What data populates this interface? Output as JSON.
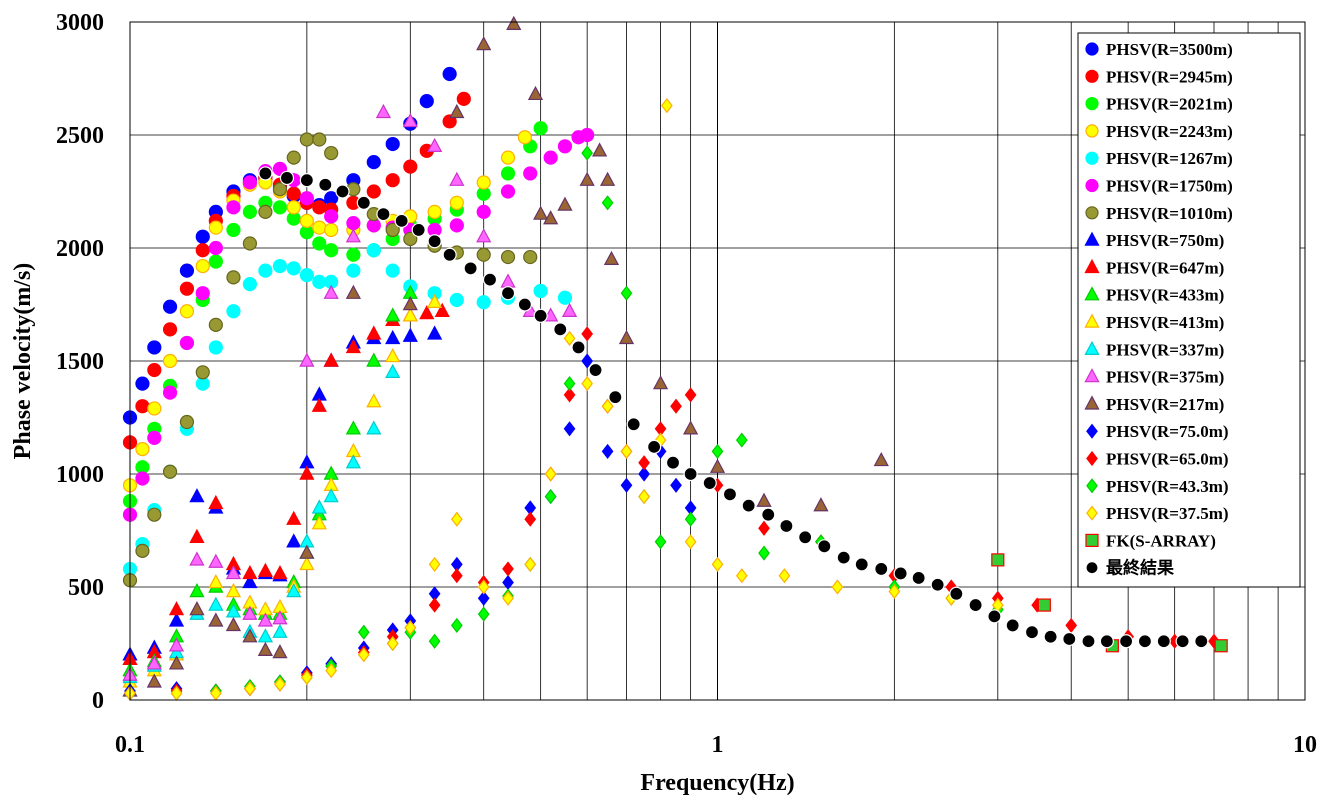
{
  "chart_data": {
    "type": "scatter",
    "title": "",
    "xlabel": "Frequency(Hz)",
    "ylabel": "Phase velocity(m/s)",
    "x_scale": "log",
    "xlim": [
      0.1,
      10
    ],
    "ylim": [
      0,
      3000
    ],
    "x_ticks": [
      0.1,
      1,
      10
    ],
    "x_tick_labels": [
      "0.1",
      "1",
      "10"
    ],
    "y_ticks": [
      0,
      500,
      1000,
      1500,
      2000,
      2500,
      3000
    ],
    "y_tick_labels": [
      "0",
      "500",
      "1000",
      "1500",
      "2000",
      "2500",
      "3000"
    ],
    "grid": true,
    "legend_position": "top-right",
    "series": [
      {
        "name": "PHSV(R=3500m)",
        "marker": "circle",
        "color": "#0000FF",
        "stroke": "#0000FF",
        "x": [
          0.1,
          0.105,
          0.11,
          0.117,
          0.125,
          0.133,
          0.14,
          0.15,
          0.16,
          0.17,
          0.18,
          0.19,
          0.2,
          0.21,
          0.22,
          0.24,
          0.26,
          0.28,
          0.3,
          0.32,
          0.35
        ],
        "y": [
          1250,
          1400,
          1560,
          1740,
          1900,
          2050,
          2160,
          2250,
          2300,
          2310,
          2270,
          2230,
          2200,
          2190,
          2220,
          2300,
          2380,
          2460,
          2550,
          2650,
          2770
        ]
      },
      {
        "name": "PHSV(R=2945m)",
        "marker": "circle",
        "color": "#FF0000",
        "stroke": "#FF0000",
        "x": [
          0.1,
          0.105,
          0.11,
          0.117,
          0.125,
          0.133,
          0.14,
          0.15,
          0.16,
          0.17,
          0.18,
          0.19,
          0.2,
          0.21,
          0.22,
          0.24,
          0.26,
          0.28,
          0.3,
          0.32,
          0.35,
          0.37
        ],
        "y": [
          1140,
          1300,
          1460,
          1640,
          1820,
          1990,
          2120,
          2230,
          2290,
          2310,
          2280,
          2240,
          2200,
          2180,
          2170,
          2200,
          2250,
          2300,
          2360,
          2430,
          2560,
          2660
        ]
      },
      {
        "name": "PHSV(R=2021m)",
        "marker": "circle",
        "color": "#00FF00",
        "stroke": "#00FF00",
        "x": [
          0.1,
          0.105,
          0.11,
          0.117,
          0.125,
          0.133,
          0.14,
          0.15,
          0.16,
          0.17,
          0.18,
          0.19,
          0.2,
          0.21,
          0.22,
          0.24,
          0.26,
          0.28,
          0.3,
          0.33,
          0.36,
          0.4,
          0.44,
          0.48,
          0.5
        ],
        "y": [
          880,
          1030,
          1200,
          1390,
          1580,
          1770,
          1940,
          2080,
          2160,
          2200,
          2180,
          2130,
          2070,
          2020,
          1990,
          1970,
          1990,
          2040,
          2100,
          2130,
          2170,
          2240,
          2330,
          2450,
          2530
        ]
      },
      {
        "name": "PHSV(R=2243m)",
        "marker": "circle",
        "color": "#FFFF00",
        "stroke": "#FFB000",
        "x": [
          0.1,
          0.105,
          0.11,
          0.117,
          0.125,
          0.133,
          0.14,
          0.15,
          0.16,
          0.17,
          0.18,
          0.19,
          0.2,
          0.21,
          0.22,
          0.24,
          0.26,
          0.28,
          0.3,
          0.33,
          0.36,
          0.4,
          0.44,
          0.47
        ],
        "y": [
          950,
          1110,
          1290,
          1500,
          1720,
          1920,
          2090,
          2210,
          2280,
          2290,
          2250,
          2180,
          2120,
          2090,
          2080,
          2080,
          2100,
          2120,
          2140,
          2160,
          2200,
          2290,
          2400,
          2490
        ]
      },
      {
        "name": "PHSV(R=1267m)",
        "marker": "circle",
        "color": "#00FFFF",
        "stroke": "#00FFFF",
        "x": [
          0.1,
          0.105,
          0.11,
          0.117,
          0.125,
          0.133,
          0.14,
          0.15,
          0.16,
          0.17,
          0.18,
          0.19,
          0.2,
          0.21,
          0.22,
          0.24,
          0.26,
          0.28,
          0.3,
          0.33,
          0.36,
          0.4,
          0.44,
          0.5,
          0.55
        ],
        "y": [
          580,
          690,
          840,
          1010,
          1200,
          1400,
          1560,
          1720,
          1840,
          1900,
          1920,
          1910,
          1880,
          1850,
          1850,
          1900,
          1990,
          1900,
          1830,
          1800,
          1770,
          1760,
          1780,
          1810,
          1780
        ]
      },
      {
        "name": "PHSV(R=1750m)",
        "marker": "circle",
        "color": "#FF00FF",
        "stroke": "#FF00FF",
        "x": [
          0.1,
          0.105,
          0.11,
          0.117,
          0.125,
          0.133,
          0.14,
          0.15,
          0.16,
          0.17,
          0.18,
          0.19,
          0.2,
          0.22,
          0.24,
          0.26,
          0.28,
          0.3,
          0.33,
          0.36,
          0.4,
          0.44,
          0.48,
          0.52,
          0.55,
          0.58,
          0.6
        ],
        "y": [
          820,
          980,
          1160,
          1360,
          1580,
          1800,
          2000,
          2180,
          2290,
          2340,
          2350,
          2300,
          2220,
          2140,
          2110,
          2100,
          2090,
          2080,
          2080,
          2100,
          2160,
          2250,
          2330,
          2400,
          2450,
          2490,
          2500
        ]
      },
      {
        "name": "PHSV(R=1010m)",
        "marker": "circle",
        "color": "#999933",
        "stroke": "#66661F",
        "x": [
          0.1,
          0.105,
          0.11,
          0.117,
          0.125,
          0.133,
          0.14,
          0.15,
          0.16,
          0.17,
          0.18,
          0.19,
          0.2,
          0.21,
          0.22,
          0.24,
          0.26,
          0.28,
          0.3,
          0.33,
          0.36,
          0.4,
          0.44,
          0.48
        ],
        "y": [
          530,
          660,
          820,
          1010,
          1230,
          1450,
          1660,
          1870,
          2020,
          2160,
          2260,
          2400,
          2480,
          2480,
          2420,
          2260,
          2150,
          2080,
          2040,
          2010,
          1980,
          1970,
          1960,
          1960
        ]
      },
      {
        "name": "PHSV(R=750m)",
        "marker": "triangle",
        "color": "#0000FF",
        "stroke": "#0000FF",
        "x": [
          0.1,
          0.11,
          0.12,
          0.13,
          0.14,
          0.15,
          0.16,
          0.17,
          0.18,
          0.19,
          0.2,
          0.21,
          0.22,
          0.24,
          0.26,
          0.28,
          0.3,
          0.33
        ],
        "y": [
          200,
          230,
          350,
          900,
          850,
          580,
          520,
          560,
          550,
          700,
          1050,
          1350,
          1500,
          1580,
          1600,
          1600,
          1610,
          1620
        ]
      },
      {
        "name": "PHSV(R=647m)",
        "marker": "triangle",
        "color": "#FF0000",
        "stroke": "#FF0000",
        "x": [
          0.1,
          0.11,
          0.12,
          0.13,
          0.14,
          0.15,
          0.16,
          0.17,
          0.18,
          0.19,
          0.2,
          0.21,
          0.22,
          0.24,
          0.26,
          0.28,
          0.3,
          0.32,
          0.34
        ],
        "y": [
          180,
          210,
          400,
          720,
          870,
          600,
          560,
          570,
          560,
          800,
          1000,
          1300,
          1500,
          1560,
          1620,
          1680,
          1700,
          1710,
          1720
        ]
      },
      {
        "name": "PHSV(R=433m)",
        "marker": "triangle",
        "color": "#00FF00",
        "stroke": "#00CC00",
        "x": [
          0.1,
          0.11,
          0.12,
          0.13,
          0.14,
          0.15,
          0.16,
          0.17,
          0.18,
          0.19,
          0.2,
          0.21,
          0.22,
          0.24,
          0.26,
          0.28,
          0.3
        ],
        "y": [
          130,
          170,
          280,
          480,
          500,
          420,
          400,
          380,
          380,
          520,
          650,
          820,
          1000,
          1200,
          1500,
          1700,
          1800
        ]
      },
      {
        "name": "PHSV(R=413m)",
        "marker": "triangle",
        "color": "#FFFF00",
        "stroke": "#FFB000",
        "x": [
          0.1,
          0.11,
          0.12,
          0.13,
          0.14,
          0.15,
          0.16,
          0.17,
          0.18,
          0.19,
          0.2,
          0.21,
          0.22,
          0.24,
          0.26,
          0.28,
          0.3,
          0.33
        ],
        "y": [
          80,
          130,
          200,
          400,
          520,
          480,
          430,
          400,
          410,
          500,
          600,
          780,
          950,
          1100,
          1320,
          1520,
          1700,
          1760
        ]
      },
      {
        "name": "PHSV(R=337m)",
        "marker": "triangle",
        "color": "#00FFFF",
        "stroke": "#00CCCC",
        "x": [
          0.1,
          0.11,
          0.12,
          0.13,
          0.14,
          0.15,
          0.16,
          0.17,
          0.18,
          0.19,
          0.2,
          0.21,
          0.22,
          0.24,
          0.26,
          0.28
        ],
        "y": [
          100,
          150,
          210,
          380,
          420,
          390,
          300,
          280,
          300,
          480,
          700,
          850,
          900,
          1050,
          1200,
          1450
        ]
      },
      {
        "name": "PHSV(R=375m)",
        "marker": "triangle",
        "color": "#FF66FF",
        "stroke": "#CC33CC",
        "x": [
          0.1,
          0.11,
          0.12,
          0.13,
          0.14,
          0.15,
          0.16,
          0.17,
          0.18,
          0.2,
          0.22,
          0.24,
          0.27,
          0.3,
          0.33,
          0.36,
          0.4,
          0.44,
          0.48,
          0.52,
          0.56
        ],
        "y": [
          110,
          160,
          240,
          620,
          610,
          560,
          380,
          350,
          360,
          1500,
          1800,
          2050,
          2600,
          2560,
          2450,
          2300,
          2050,
          1850,
          1720,
          1700,
          1720
        ]
      },
      {
        "name": "PHSV(R=217m)",
        "marker": "triangle",
        "color": "#996633",
        "stroke": "#663366",
        "x": [
          0.1,
          0.11,
          0.12,
          0.13,
          0.14,
          0.15,
          0.16,
          0.17,
          0.18,
          0.2,
          0.24,
          0.3,
          0.36,
          0.4,
          0.45,
          0.49,
          0.5,
          0.52,
          0.55,
          0.6,
          0.63,
          0.65,
          0.66,
          0.7,
          0.8,
          0.9,
          1.0,
          1.2,
          1.5,
          1.9
        ],
        "y": [
          40,
          80,
          160,
          400,
          350,
          330,
          280,
          220,
          210,
          650,
          1800,
          1750,
          2600,
          2900,
          2990,
          2680,
          2150,
          2130,
          2190,
          2300,
          2430,
          2300,
          1950,
          1600,
          1400,
          1200,
          1030,
          880,
          860,
          1060
        ]
      },
      {
        "name": "PHSV(R=75.0m)",
        "marker": "diamond",
        "color": "#0000FF",
        "stroke": "#0000FF",
        "x": [
          0.1,
          0.12,
          0.14,
          0.16,
          0.18,
          0.2,
          0.22,
          0.25,
          0.28,
          0.3,
          0.33,
          0.36,
          0.4,
          0.44,
          0.48,
          0.52,
          0.56,
          0.6,
          0.65,
          0.7,
          0.75,
          0.8,
          0.85,
          0.9
        ],
        "y": [
          40,
          50,
          40,
          50,
          80,
          120,
          160,
          230,
          310,
          350,
          470,
          600,
          450,
          520,
          850,
          900,
          1200,
          1500,
          1100,
          950,
          1000,
          1100,
          950,
          850
        ]
      },
      {
        "name": "PHSV(R=65.0m)",
        "marker": "diamond",
        "color": "#FF0000",
        "stroke": "#FF0000",
        "x": [
          0.1,
          0.12,
          0.14,
          0.16,
          0.18,
          0.2,
          0.22,
          0.25,
          0.28,
          0.3,
          0.33,
          0.36,
          0.4,
          0.44,
          0.48,
          0.52,
          0.56,
          0.6,
          0.65,
          0.7,
          0.75,
          0.8,
          0.85,
          0.9,
          1.0,
          1.2,
          1.5,
          2.0,
          2.5,
          3.0,
          3.5,
          4.0,
          5.0,
          6.0,
          7.0
        ],
        "y": [
          30,
          40,
          40,
          50,
          70,
          110,
          150,
          210,
          280,
          320,
          420,
          550,
          520,
          580,
          800,
          1000,
          1350,
          1620,
          1300,
          1100,
          1050,
          1200,
          1300,
          1350,
          950,
          760,
          700,
          550,
          500,
          450,
          420,
          330,
          280,
          260,
          260
        ]
      },
      {
        "name": "PHSV(R=43.3m)",
        "marker": "diamond",
        "color": "#00FF00",
        "stroke": "#00CC00",
        "x": [
          0.1,
          0.12,
          0.14,
          0.16,
          0.18,
          0.2,
          0.22,
          0.25,
          0.28,
          0.3,
          0.33,
          0.36,
          0.4,
          0.44,
          0.48,
          0.52,
          0.56,
          0.6,
          0.65,
          0.7,
          0.75,
          0.8,
          0.9,
          1.0,
          1.1,
          1.2,
          1.5,
          2.0,
          2.5,
          3.0
        ],
        "y": [
          30,
          30,
          40,
          60,
          80,
          100,
          150,
          300,
          250,
          300,
          260,
          330,
          380,
          460,
          600,
          900,
          1400,
          2420,
          2200,
          1800,
          900,
          700,
          800,
          1100,
          1150,
          650,
          700,
          500,
          450,
          400
        ]
      },
      {
        "name": "PHSV(R=37.5m)",
        "marker": "diamond",
        "color": "#FFFF00",
        "stroke": "#FFB000",
        "x": [
          0.1,
          0.12,
          0.14,
          0.16,
          0.18,
          0.2,
          0.22,
          0.25,
          0.28,
          0.3,
          0.33,
          0.36,
          0.4,
          0.44,
          0.48,
          0.52,
          0.56,
          0.6,
          0.65,
          0.7,
          0.75,
          0.8,
          0.82,
          0.9,
          1.0,
          1.1,
          1.3,
          1.6,
          2.0,
          2.5,
          3.0
        ],
        "y": [
          30,
          30,
          30,
          50,
          70,
          100,
          130,
          200,
          250,
          320,
          600,
          800,
          500,
          450,
          600,
          1000,
          1600,
          1400,
          1300,
          1100,
          900,
          1150,
          2630,
          700,
          600,
          550,
          550,
          500,
          480,
          450,
          420
        ]
      },
      {
        "name": "FK(S-ARRAY)",
        "marker": "square",
        "color": "#33CC33",
        "stroke": "#FF0000",
        "x": [
          3.0,
          3.6,
          4.7,
          7.2
        ],
        "y": [
          620,
          420,
          240,
          240
        ]
      },
      {
        "name": "最終結果",
        "marker": "circle",
        "color": "#000000",
        "stroke": "#FFFFFF",
        "x": [
          0.17,
          0.185,
          0.2,
          0.215,
          0.23,
          0.25,
          0.27,
          0.29,
          0.31,
          0.33,
          0.35,
          0.38,
          0.41,
          0.44,
          0.47,
          0.5,
          0.54,
          0.58,
          0.62,
          0.67,
          0.72,
          0.78,
          0.84,
          0.9,
          0.97,
          1.05,
          1.13,
          1.22,
          1.31,
          1.41,
          1.52,
          1.64,
          1.76,
          1.9,
          2.05,
          2.2,
          2.37,
          2.55,
          2.75,
          2.96,
          3.18,
          3.43,
          3.69,
          3.97,
          4.28,
          4.6,
          4.96,
          5.34,
          5.75,
          6.19,
          6.66
        ],
        "y": [
          2330,
          2310,
          2300,
          2280,
          2250,
          2200,
          2150,
          2120,
          2080,
          2030,
          1970,
          1910,
          1860,
          1800,
          1750,
          1700,
          1640,
          1560,
          1460,
          1340,
          1220,
          1120,
          1050,
          1000,
          960,
          910,
          860,
          820,
          770,
          720,
          680,
          630,
          600,
          580,
          560,
          540,
          510,
          470,
          420,
          370,
          330,
          300,
          280,
          270,
          260,
          260,
          260,
          260,
          260,
          260,
          260
        ]
      }
    ]
  }
}
